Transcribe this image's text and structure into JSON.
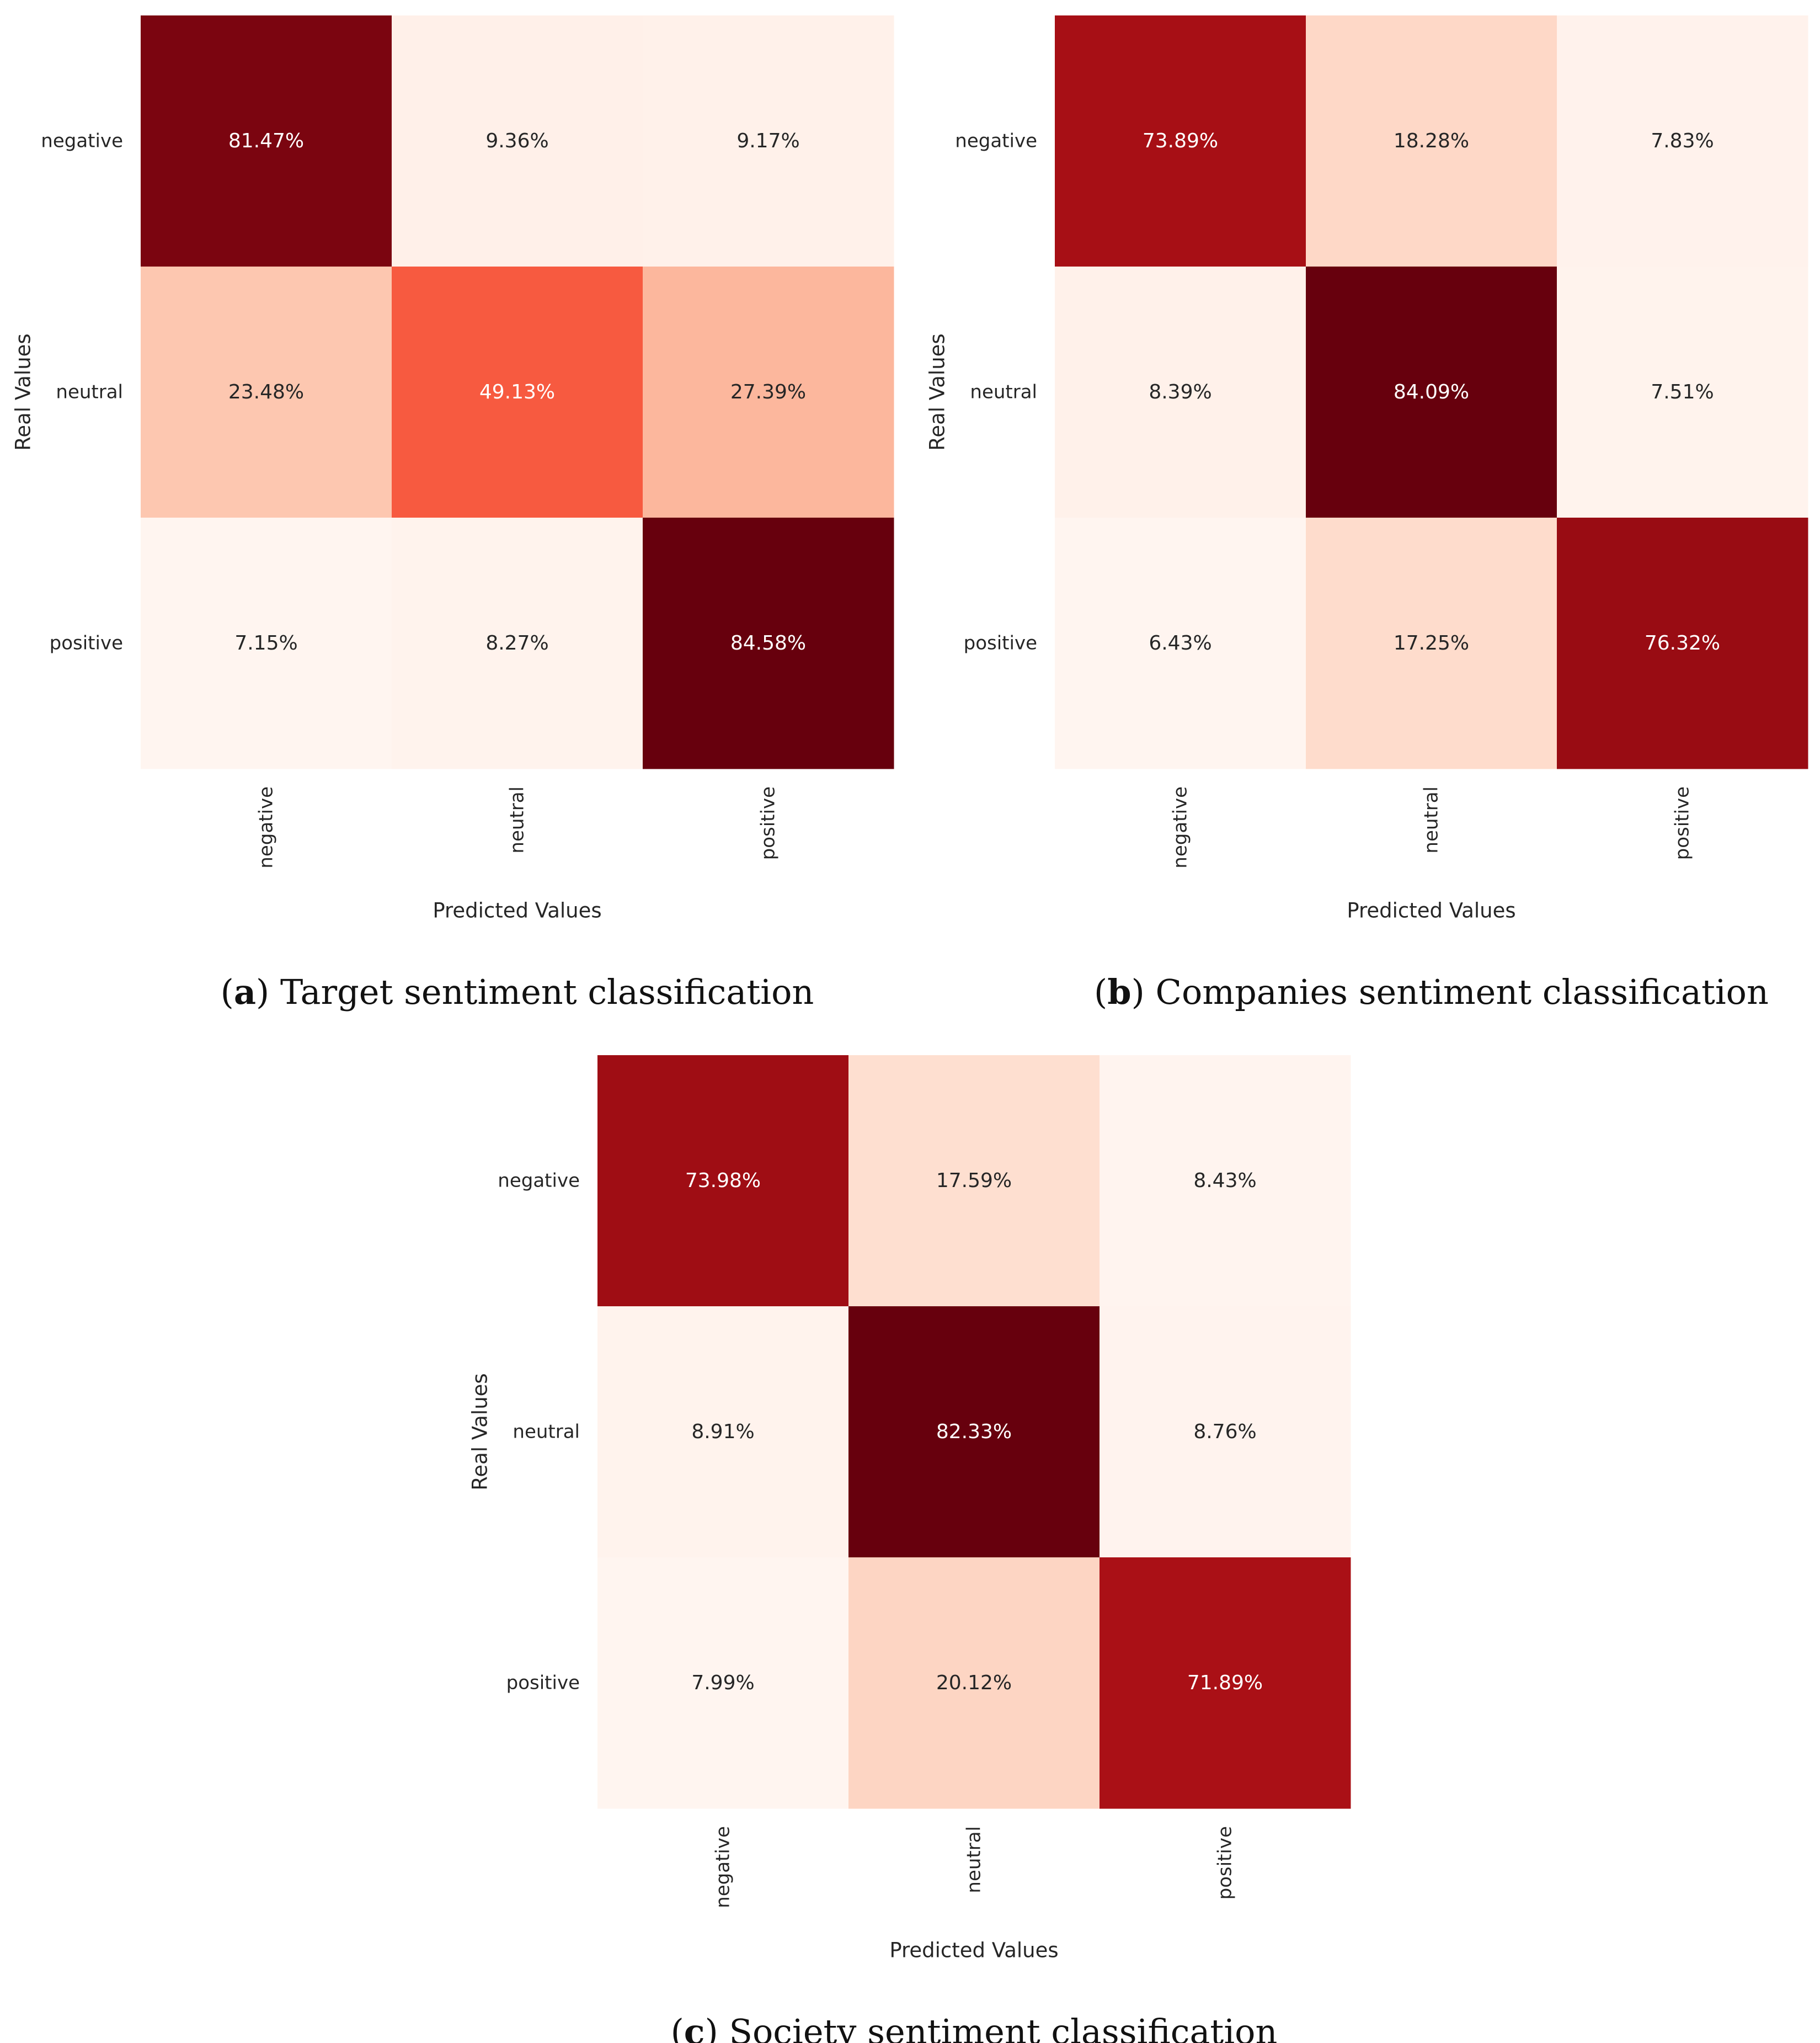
{
  "chart_data": [
    {
      "type": "heatmap",
      "panel_letter": "a",
      "title": "Target sentiment classification",
      "xlabel": "Predicted Values",
      "ylabel": "Real Values",
      "x_categories": [
        "negative",
        "neutral",
        "positive"
      ],
      "y_categories": [
        "negative",
        "neutral",
        "positive"
      ],
      "values": [
        [
          81.47,
          9.36,
          9.17
        ],
        [
          23.48,
          49.13,
          27.39
        ],
        [
          7.15,
          8.27,
          84.58
        ]
      ],
      "labels": [
        [
          "81.47%",
          "9.36%",
          "9.17%"
        ],
        [
          "23.48%",
          "49.13%",
          "27.39%"
        ],
        [
          "7.15%",
          "8.27%",
          "84.58%"
        ]
      ],
      "colormap": "Reds",
      "legend": "none"
    },
    {
      "type": "heatmap",
      "panel_letter": "b",
      "title": "Companies sentiment classification",
      "xlabel": "Predicted Values",
      "ylabel": "Real Values",
      "x_categories": [
        "negative",
        "neutral",
        "positive"
      ],
      "y_categories": [
        "negative",
        "neutral",
        "positive"
      ],
      "values": [
        [
          73.89,
          18.28,
          7.83
        ],
        [
          8.39,
          84.09,
          7.51
        ],
        [
          6.43,
          17.25,
          76.32
        ]
      ],
      "labels": [
        [
          "73.89%",
          "18.28%",
          "7.83%"
        ],
        [
          "8.39%",
          "84.09%",
          "7.51%"
        ],
        [
          "6.43%",
          "17.25%",
          "76.32%"
        ]
      ],
      "colormap": "Reds",
      "legend": "none"
    },
    {
      "type": "heatmap",
      "panel_letter": "c",
      "title": "Society sentiment classification",
      "xlabel": "Predicted Values",
      "ylabel": "Real Values",
      "x_categories": [
        "negative",
        "neutral",
        "positive"
      ],
      "y_categories": [
        "negative",
        "neutral",
        "positive"
      ],
      "values": [
        [
          73.98,
          17.59,
          8.43
        ],
        [
          8.91,
          82.33,
          8.76
        ],
        [
          7.99,
          20.12,
          71.89
        ]
      ],
      "labels": [
        [
          "73.98%",
          "17.59%",
          "8.43%"
        ],
        [
          "8.91%",
          "82.33%",
          "8.76%"
        ],
        [
          "7.99%",
          "20.12%",
          "71.89%"
        ]
      ],
      "colormap": "Reds",
      "legend": "none"
    }
  ]
}
